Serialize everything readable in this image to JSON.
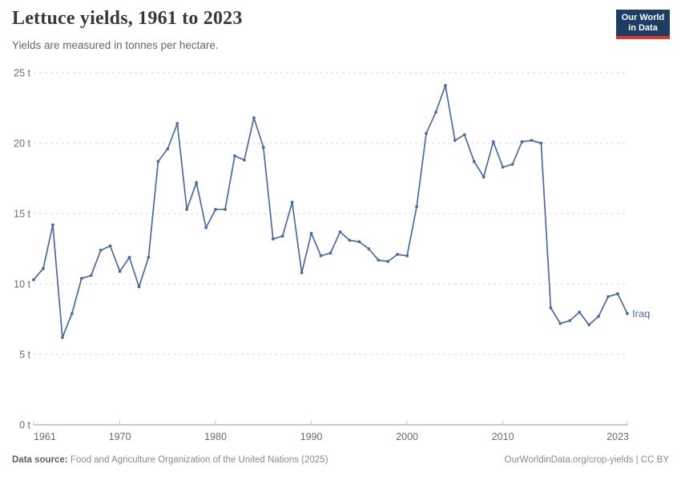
{
  "header": {
    "title": "Lettuce yields, 1961 to 2023",
    "subtitle": "Yields are measured in tonnes per hectare.",
    "logo": {
      "line1": "Our World",
      "line2": "in Data"
    }
  },
  "chart_data": {
    "type": "line",
    "title": "Lettuce yields, 1961 to 2023",
    "ylabel": "tonnes per hectare",
    "unit": "t",
    "xlim": [
      1961,
      2023
    ],
    "ylim": [
      0,
      25
    ],
    "grid": "dashed-horizontal",
    "legend_position": "end-of-line-label",
    "x_ticks": [
      1961,
      1970,
      1980,
      1990,
      2000,
      2010,
      2023
    ],
    "y_ticks": [
      0,
      5,
      10,
      15,
      20,
      25
    ],
    "y_tick_labels": [
      "0 t",
      "5 t",
      "10 t",
      "15 t",
      "20 t",
      "25 t"
    ],
    "x": [
      1961,
      1962,
      1963,
      1964,
      1965,
      1966,
      1967,
      1968,
      1969,
      1970,
      1971,
      1972,
      1973,
      1974,
      1975,
      1976,
      1977,
      1978,
      1979,
      1980,
      1981,
      1982,
      1983,
      1984,
      1985,
      1986,
      1987,
      1988,
      1989,
      1990,
      1991,
      1992,
      1993,
      1994,
      1995,
      1996,
      1997,
      1998,
      1999,
      2000,
      2001,
      2002,
      2003,
      2004,
      2005,
      2006,
      2007,
      2008,
      2009,
      2010,
      2011,
      2012,
      2013,
      2014,
      2015,
      2016,
      2017,
      2018,
      2019,
      2020,
      2021,
      2022,
      2023
    ],
    "series": [
      {
        "name": "Iraq",
        "color": "#4C6A9C",
        "values": [
          10.3,
          11.1,
          14.2,
          6.2,
          7.9,
          10.4,
          10.6,
          12.4,
          12.7,
          10.9,
          11.9,
          9.8,
          11.9,
          18.7,
          19.6,
          21.4,
          15.3,
          17.2,
          14.0,
          15.3,
          15.3,
          19.1,
          18.8,
          21.8,
          19.7,
          13.2,
          13.4,
          15.8,
          10.8,
          13.6,
          12.0,
          12.2,
          13.7,
          13.1,
          13.0,
          12.5,
          11.7,
          11.6,
          12.1,
          12.0,
          15.5,
          20.7,
          22.2,
          24.1,
          20.2,
          20.6,
          18.7,
          17.6,
          20.1,
          18.3,
          18.5,
          20.1,
          20.2,
          20.0,
          8.3,
          7.2,
          7.4,
          8.0,
          7.1,
          7.7,
          9.1,
          9.3,
          7.9
        ]
      }
    ]
  },
  "footer": {
    "source_label": "Data source:",
    "source_text": "Food and Agriculture Organization of the United Nations (2025)",
    "link_text": "OurWorldinData.org/crop-yields | CC BY"
  },
  "colors": {
    "line": "#4C6A9C",
    "grid": "#d9d9d9",
    "axis": "#999999",
    "tick_label": "#6b6b6b",
    "logo_bg": "#1d3d63",
    "logo_accent": "#d73c2c"
  }
}
